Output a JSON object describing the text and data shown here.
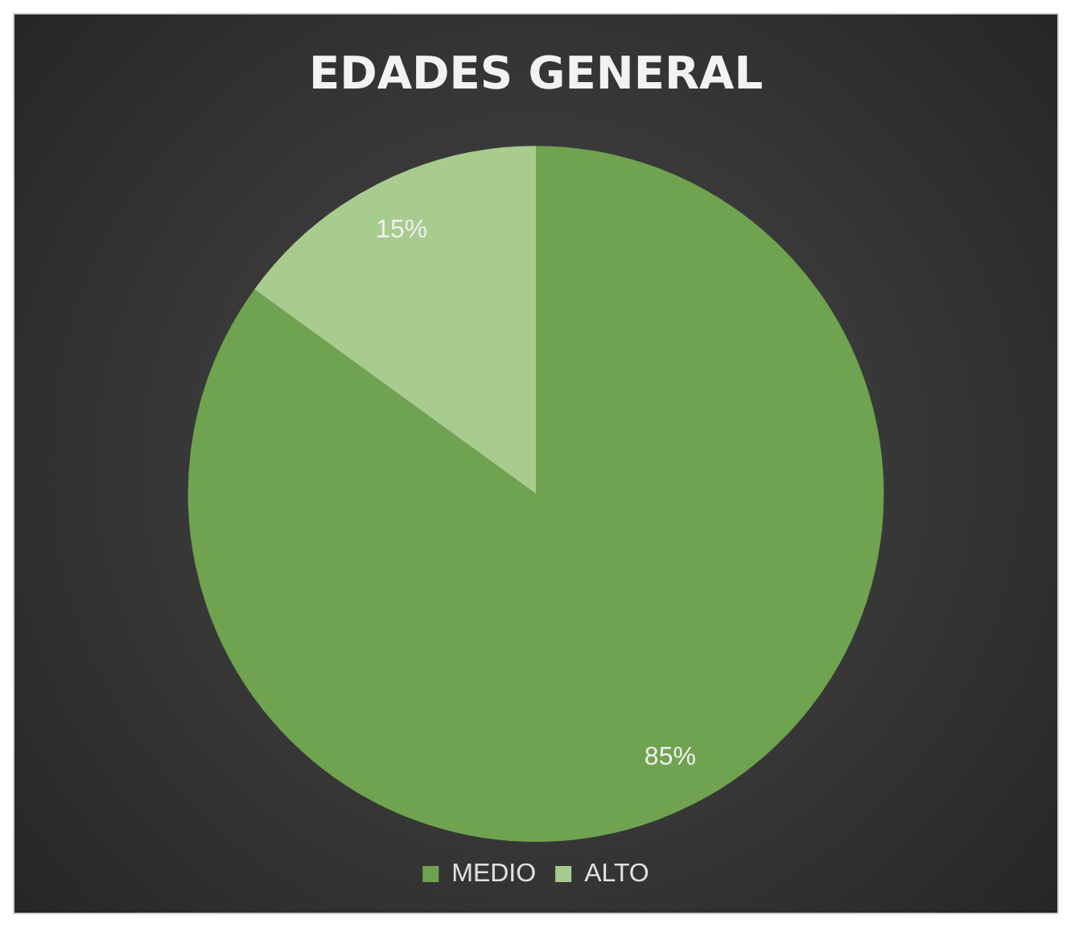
{
  "chart_data": {
    "type": "pie",
    "title": "EDADES GENERAL",
    "categories": [
      "MEDIO",
      "ALTO"
    ],
    "values": [
      85,
      15
    ],
    "colors": [
      "#6fa34f",
      "#a8cb8e"
    ],
    "value_labels": [
      "85%",
      "15%"
    ],
    "legend": "bottom"
  }
}
